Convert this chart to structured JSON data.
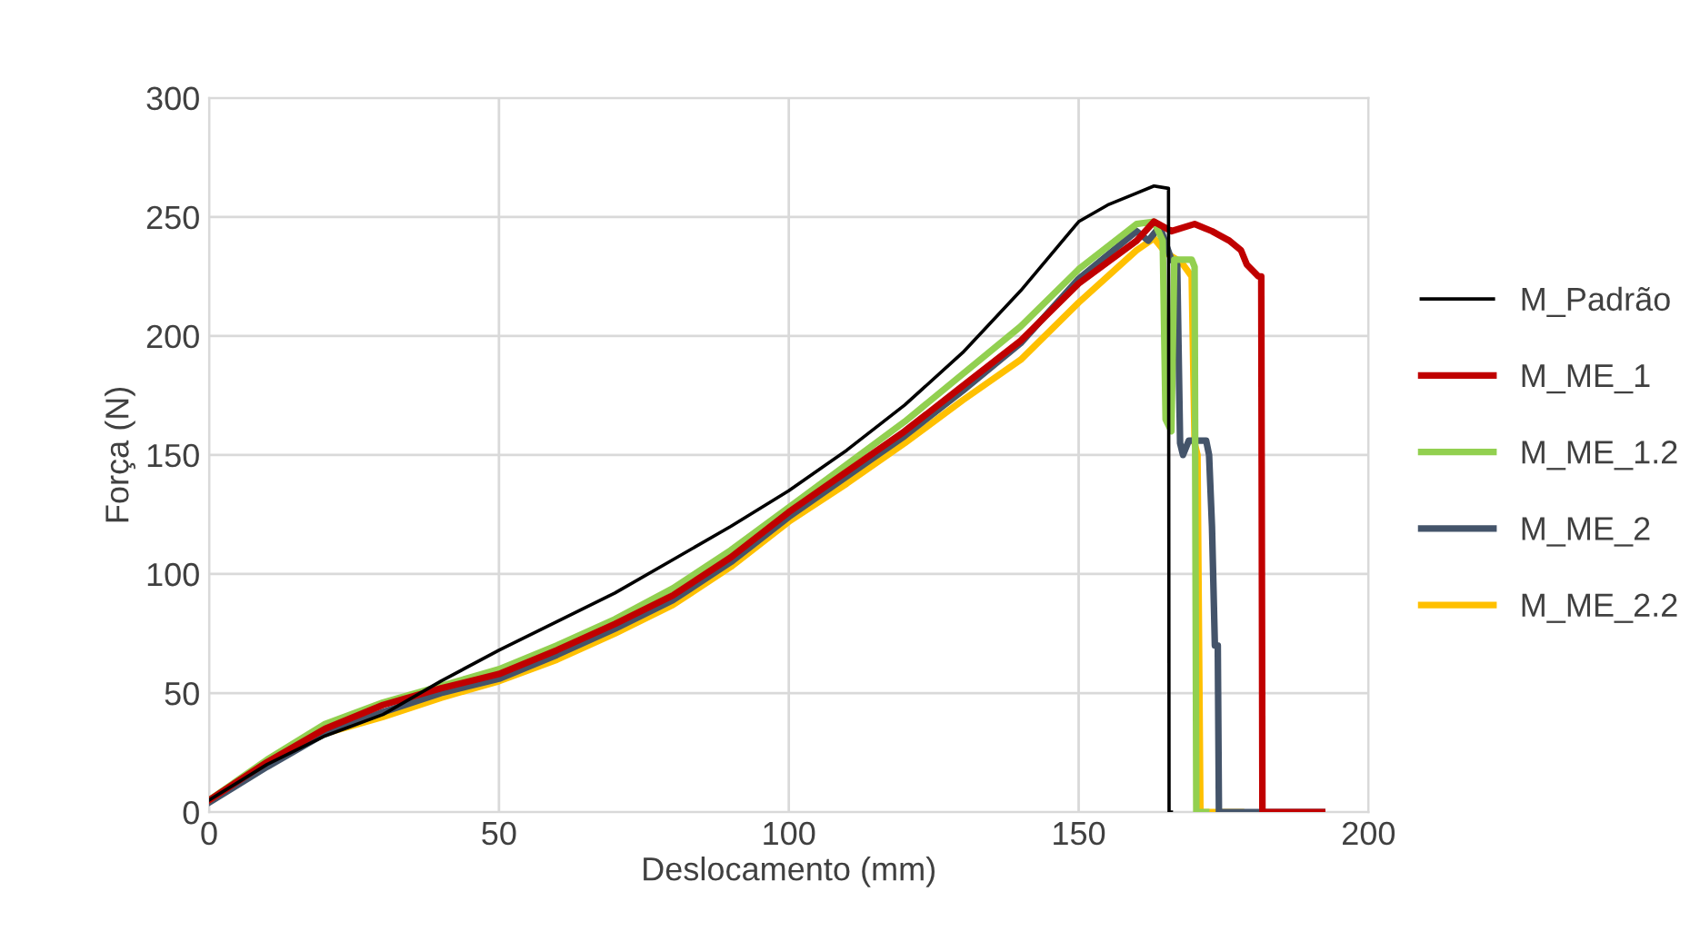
{
  "chart_data": {
    "type": "line",
    "xlabel": "Deslocamento (mm)",
    "ylabel": "Força (N)",
    "xlim": [
      0,
      200
    ],
    "ylim": [
      0,
      300
    ],
    "xticks": [
      0,
      50,
      100,
      150,
      200
    ],
    "yticks": [
      0,
      50,
      100,
      150,
      200,
      250,
      300
    ],
    "grid": true,
    "legend": "right",
    "marker": "none",
    "line_style": "solid",
    "series": [
      {
        "name": "M_Padrão",
        "color": "#000000",
        "x": [
          0,
          10,
          20,
          30,
          40,
          50,
          60,
          70,
          80,
          90,
          100,
          110,
          120,
          130,
          140,
          150,
          155,
          160,
          163,
          165.5,
          165.6,
          166
        ],
        "values": [
          5,
          20,
          32,
          41,
          55,
          68,
          80,
          92,
          106,
          120,
          135,
          152,
          171,
          193,
          219,
          248,
          255,
          260,
          263,
          262,
          0,
          0
        ]
      },
      {
        "name": "M_ME_1",
        "color": "#c00000",
        "x": [
          0,
          10,
          20,
          30,
          40,
          50,
          60,
          70,
          80,
          90,
          100,
          110,
          120,
          130,
          140,
          150,
          160,
          163,
          166,
          170,
          173,
          176,
          178,
          179,
          181,
          181.5,
          181.7,
          192
        ],
        "values": [
          5,
          21,
          35,
          45,
          52,
          58,
          68,
          79,
          91,
          107,
          126,
          143,
          160,
          179,
          198,
          222,
          240,
          248,
          244,
          247,
          244,
          240,
          236,
          230,
          225,
          225,
          0,
          0
        ]
      },
      {
        "name": "M_ME_1.2",
        "color": "#92d050",
        "x": [
          0,
          10,
          20,
          30,
          40,
          50,
          60,
          70,
          80,
          90,
          100,
          110,
          120,
          130,
          140,
          150,
          160,
          163,
          164.5,
          165,
          166,
          166.5,
          169.5,
          170,
          170.3,
          172
        ],
        "values": [
          5,
          22,
          37,
          46,
          53,
          60,
          70,
          81,
          94,
          110,
          128,
          146,
          164,
          184,
          204,
          228,
          247,
          248,
          240,
          165,
          160,
          232,
          232,
          229,
          0,
          0
        ]
      },
      {
        "name": "M_ME_2",
        "color": "#44546a",
        "x": [
          0,
          10,
          20,
          30,
          40,
          50,
          60,
          70,
          80,
          90,
          100,
          110,
          120,
          130,
          140,
          150,
          160,
          162,
          164,
          166,
          167,
          167.5,
          168,
          169,
          172,
          172.5,
          173,
          173.5,
          174,
          174.2,
          192
        ],
        "values": [
          4,
          19,
          33,
          42,
          50,
          56,
          66,
          77,
          89,
          105,
          124,
          141,
          158,
          177,
          197,
          224,
          244,
          240,
          246,
          232,
          230,
          155,
          150,
          156,
          156,
          150,
          120,
          70,
          70,
          0,
          0
        ]
      },
      {
        "name": "M_ME_2.2",
        "color": "#ffc000",
        "x": [
          0,
          10,
          20,
          30,
          40,
          50,
          60,
          70,
          80,
          90,
          100,
          110,
          120,
          130,
          140,
          150,
          160,
          163,
          165,
          167,
          168,
          169.5,
          170,
          170.5,
          171,
          178
        ],
        "values": [
          5,
          20,
          33,
          40,
          48,
          55,
          64,
          75,
          87,
          103,
          122,
          138,
          155,
          173,
          190,
          214,
          236,
          241,
          235,
          232,
          230,
          225,
          155,
          150,
          0,
          0
        ]
      }
    ]
  }
}
